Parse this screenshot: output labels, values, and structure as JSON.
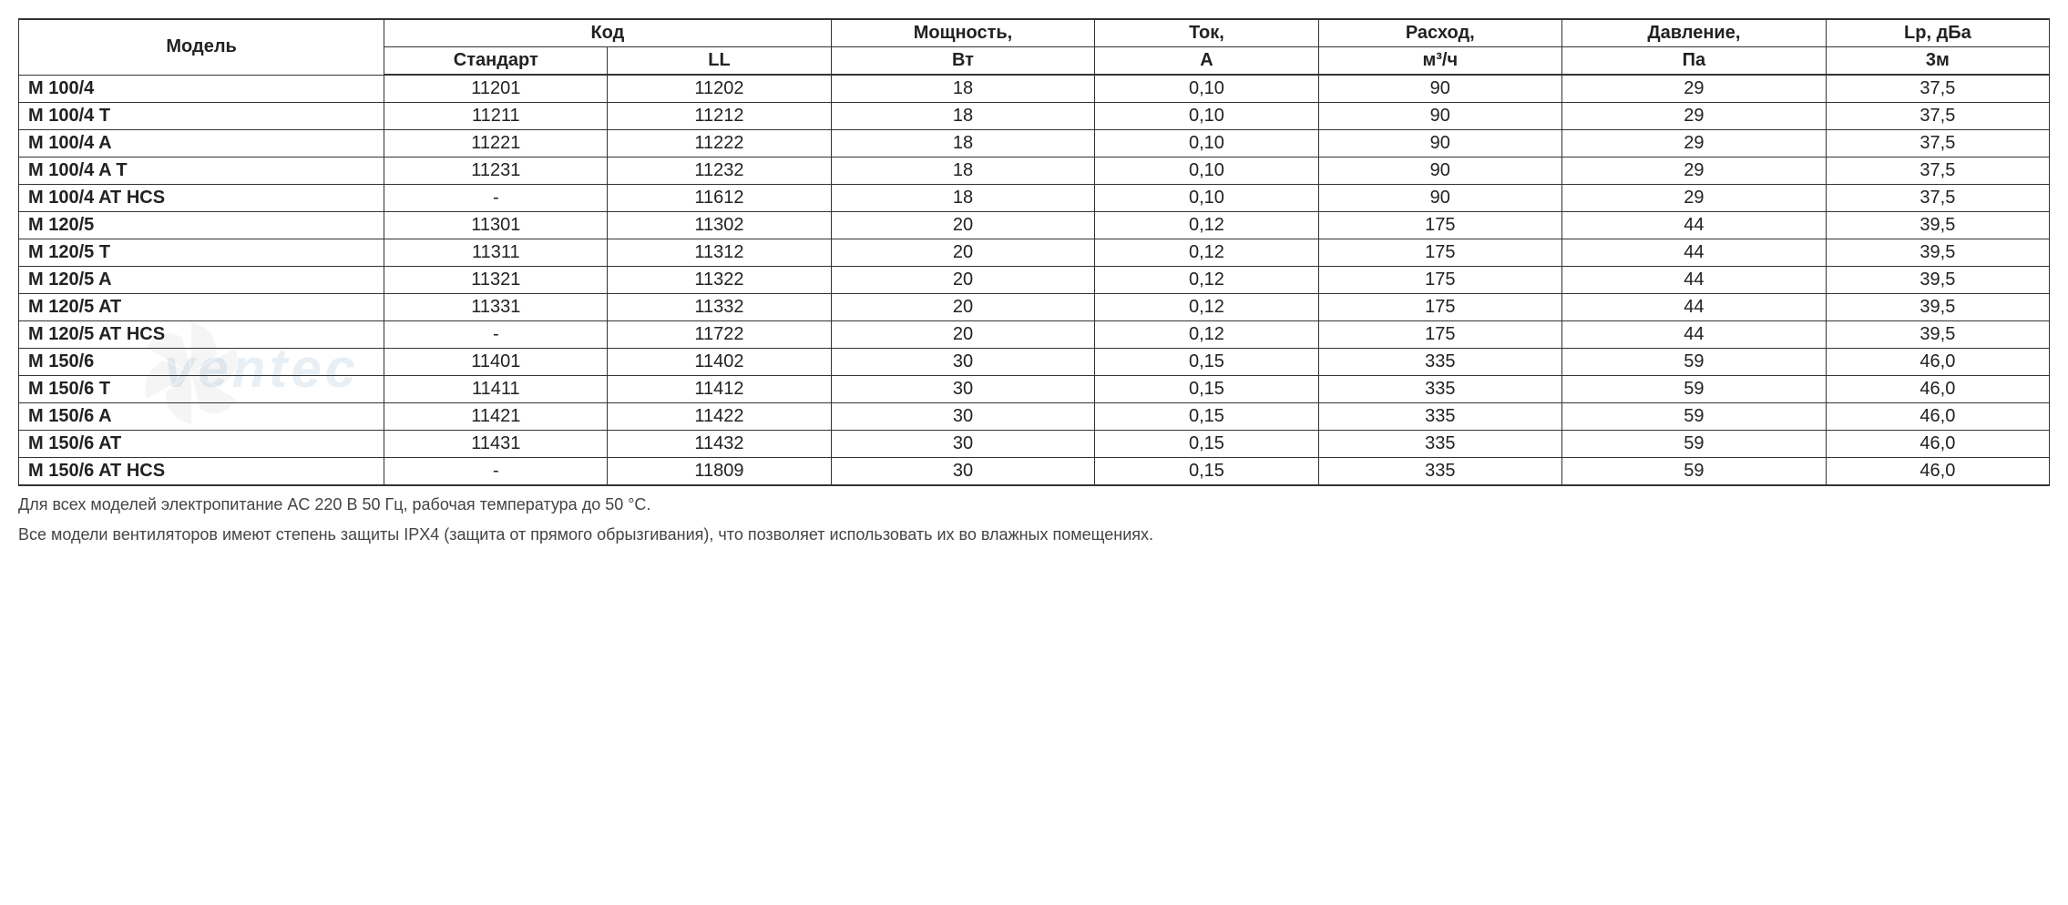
{
  "headers": {
    "model": "Модель",
    "code": "Код",
    "code_standard": "Стандарт",
    "code_ll": "LL",
    "power": "Мощность,",
    "power_unit": "Вт",
    "current": "Ток,",
    "current_unit": "А",
    "flow": "Расход,",
    "flow_unit": "м³/ч",
    "pressure": "Давление,",
    "pressure_unit": "Па",
    "noise": "Lp, дБа",
    "noise_unit": "3м"
  },
  "rows": [
    {
      "model": "M 100/4",
      "std": "11201",
      "ll": "11202",
      "power": "18",
      "current": "0,10",
      "flow": "90",
      "pressure": "29",
      "noise": "37,5"
    },
    {
      "model": "M 100/4 T",
      "std": "11211",
      "ll": "11212",
      "power": "18",
      "current": "0,10",
      "flow": "90",
      "pressure": "29",
      "noise": "37,5"
    },
    {
      "model": "M 100/4 A",
      "std": "11221",
      "ll": "11222",
      "power": "18",
      "current": "0,10",
      "flow": "90",
      "pressure": "29",
      "noise": "37,5"
    },
    {
      "model": "M 100/4 A T",
      "std": "11231",
      "ll": "11232",
      "power": "18",
      "current": "0,10",
      "flow": "90",
      "pressure": "29",
      "noise": "37,5"
    },
    {
      "model": "M 100/4 AT HCS",
      "std": "-",
      "ll": "11612",
      "power": "18",
      "current": "0,10",
      "flow": "90",
      "pressure": "29",
      "noise": "37,5"
    },
    {
      "model": "M 120/5",
      "std": "11301",
      "ll": "11302",
      "power": "20",
      "current": "0,12",
      "flow": "175",
      "pressure": "44",
      "noise": "39,5"
    },
    {
      "model": "M 120/5 T",
      "std": "11311",
      "ll": "11312",
      "power": "20",
      "current": "0,12",
      "flow": "175",
      "pressure": "44",
      "noise": "39,5"
    },
    {
      "model": "M 120/5 A",
      "std": "11321",
      "ll": "11322",
      "power": "20",
      "current": "0,12",
      "flow": "175",
      "pressure": "44",
      "noise": "39,5"
    },
    {
      "model": "M 120/5 AT",
      "std": "11331",
      "ll": "11332",
      "power": "20",
      "current": "0,12",
      "flow": "175",
      "pressure": "44",
      "noise": "39,5"
    },
    {
      "model": "M 120/5 AT HCS",
      "std": "-",
      "ll": "11722",
      "power": "20",
      "current": "0,12",
      "flow": "175",
      "pressure": "44",
      "noise": "39,5"
    },
    {
      "model": "M 150/6",
      "std": "11401",
      "ll": "11402",
      "power": "30",
      "current": "0,15",
      "flow": "335",
      "pressure": "59",
      "noise": "46,0"
    },
    {
      "model": "M 150/6 T",
      "std": "11411",
      "ll": "11412",
      "power": "30",
      "current": "0,15",
      "flow": "335",
      "pressure": "59",
      "noise": "46,0"
    },
    {
      "model": "M 150/6 A",
      "std": "11421",
      "ll": "11422",
      "power": "30",
      "current": "0,15",
      "flow": "335",
      "pressure": "59",
      "noise": "46,0"
    },
    {
      "model": "M 150/6 AT",
      "std": "11431",
      "ll": "11432",
      "power": "30",
      "current": "0,15",
      "flow": "335",
      "pressure": "59",
      "noise": "46,0"
    },
    {
      "model": "M 150/6 AT HCS",
      "std": "-",
      "ll": "11809",
      "power": "30",
      "current": "0,15",
      "flow": "335",
      "pressure": "59",
      "noise": "46,0"
    }
  ],
  "footnotes": {
    "line1": "Для всех моделей электропитание AC 220 В 50 Гц, рабочая температура до 50 °C.",
    "line2": "Все модели вентиляторов имеют степень защиты IPX4 (защита от прямого обрызгивания), что позволяет использовать их во влажных помещениях."
  },
  "watermark": "ventec",
  "styling": {
    "border_color": "#333333",
    "text_color": "#222222",
    "background_color": "#ffffff",
    "header_font_weight": "bold",
    "model_font_weight": "bold",
    "cell_font_size": 20,
    "footnote_font_size": 18,
    "footnote_color": "#444444",
    "watermark_color": "rgba(100,150,190,0.15)",
    "watermark_font_size": 60
  }
}
